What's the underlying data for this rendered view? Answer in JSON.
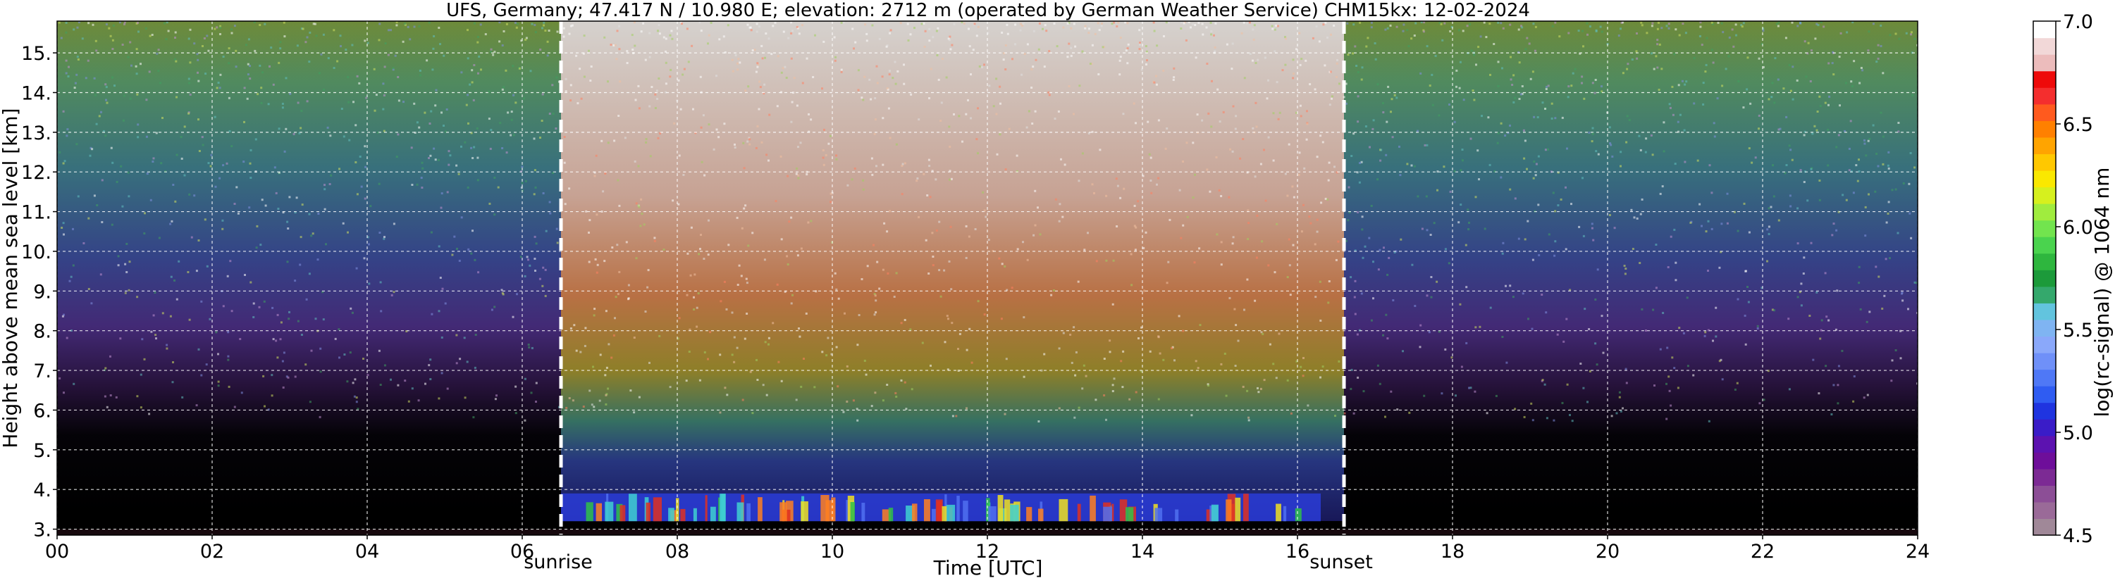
{
  "chart_data": {
    "type": "heatmap",
    "title": "UFS, Germany; 47.417 N / 10.980 E; elevation: 2712 m  (operated by German Weather Service)    CHM15kx: 12-02-2024",
    "xlabel": "Time [UTC]",
    "ylabel": "Height above mean sea level [km]",
    "colorbar_label": "log(rc-signal) @ 1064 nm",
    "xlim": [
      0,
      24
    ],
    "ylim": [
      2.85,
      15.8
    ],
    "x_ticks": [
      0,
      2,
      4,
      6,
      8,
      10,
      12,
      14,
      16,
      18,
      20,
      22,
      24
    ],
    "x_tick_labels": [
      "00",
      "02",
      "04",
      "06",
      "08",
      "10",
      "12",
      "14",
      "16",
      "18",
      "20",
      "22",
      "24"
    ],
    "y_ticks": [
      3,
      4,
      5,
      6,
      7,
      8,
      9,
      10,
      11,
      12,
      13,
      14,
      15
    ],
    "y_tick_labels": [
      "3.",
      "4.",
      "5.",
      "6.",
      "7.",
      "8.",
      "9.",
      "10.",
      "11.",
      "12.",
      "13.",
      "14.",
      "15."
    ],
    "grid": true,
    "colorbar": {
      "range": [
        4.5,
        7.0
      ],
      "ticks": [
        4.5,
        5.0,
        5.5,
        6.0,
        6.5,
        7.0
      ],
      "tick_labels": [
        "4.5",
        "5.0",
        "5.5",
        "6.0",
        "6.5",
        "7.0"
      ],
      "colors": [
        "#a08898",
        "#9a6a98",
        "#8c4e96",
        "#7c2a94",
        "#6e0e9a",
        "#5c12b0",
        "#3a1cc8",
        "#1f34e0",
        "#2f5cf2",
        "#4f78f6",
        "#6f90f8",
        "#8aa8fa",
        "#7fb4f2",
        "#62c4de",
        "#34a86c",
        "#1c9a3a",
        "#2eb63e",
        "#4ad34e",
        "#72e44e",
        "#a0ec3e",
        "#d6f01e",
        "#fae800",
        "#ffc800",
        "#ffa400",
        "#ff8000",
        "#ff5a1e",
        "#f42e2e",
        "#ee0a0a",
        "#ecbcbc",
        "#f2d8d8",
        "#ffffff"
      ]
    },
    "annotations": [
      {
        "text": "sunrise",
        "x": 6.5
      },
      {
        "text": "sunset",
        "x": 16.6
      }
    ],
    "sunrise_x": 6.5,
    "sunset_x": 16.6,
    "cloud_layer_km": [
      3.2,
      3.9
    ],
    "cloud_layer_time": [
      6.5,
      16.3
    ],
    "data_dense_until_km": 15.8
  }
}
